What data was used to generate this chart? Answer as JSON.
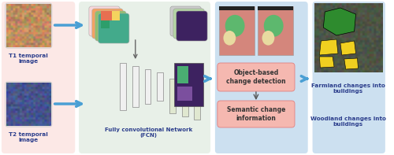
{
  "bg_color": "#ffffff",
  "panel1_bg": "#fce8e6",
  "panel2_bg": "#e8f0e8",
  "panel3_bg": "#cce0f0",
  "panel4_bg": "#fce8e6",
  "panel5_bg": "#cce0f0",
  "arrow_color": "#4a9fd4",
  "text_color": "#2c3e8c",
  "box_color": "#f7c5c0",
  "labels": {
    "t1": "T1 temporal\nimage",
    "t2": "T2 temporal\nimage",
    "fcn": "Fully convolutional Network\n(FCN)",
    "obj": "Object-based\nchange detection",
    "sem": "Semantic change\ninformation",
    "farm": "Farmland changes into\nbuildings",
    "wood": "Woodland changes into\nbuildings"
  },
  "figsize": [
    5.0,
    1.97
  ],
  "dpi": 100
}
